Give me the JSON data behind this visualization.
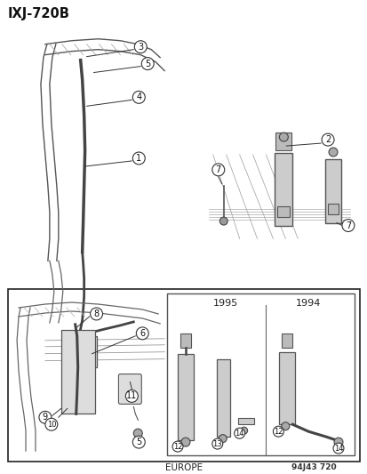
{
  "title": "IXJ-720B",
  "footer_left": "EUROPE",
  "footer_right": "94J43 720",
  "bg_color": "#ffffff",
  "border_color": "#000000",
  "year1": "1995",
  "year2": "1994"
}
